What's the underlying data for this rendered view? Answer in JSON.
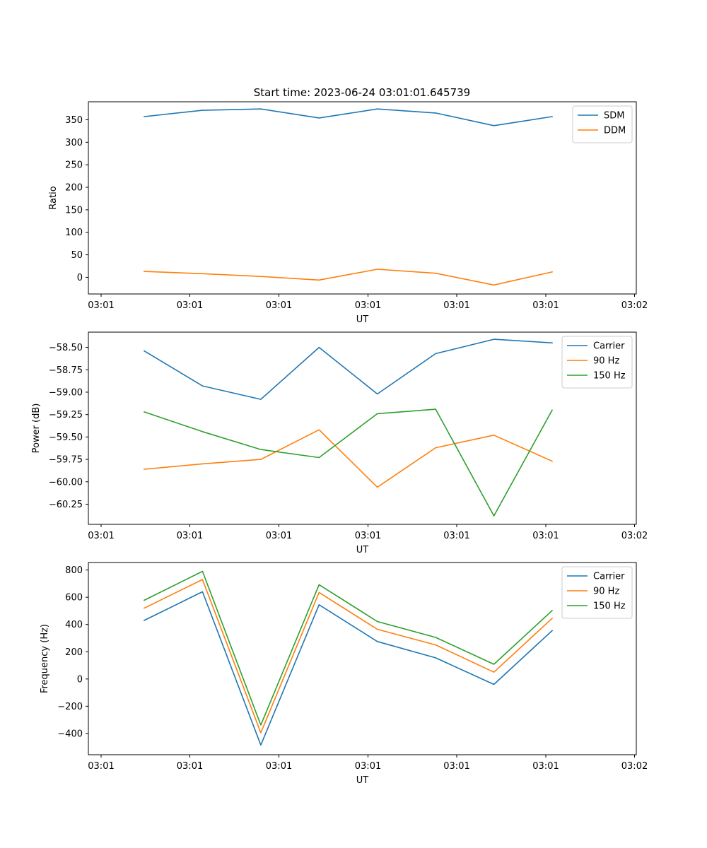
{
  "figure": {
    "title": "Start time: 2023-06-24 03:01:01.645739"
  },
  "colors": {
    "blue": "#1f77b4",
    "orange": "#ff7f0e",
    "green": "#2ca02c"
  },
  "chart_data": [
    {
      "type": "line",
      "title": "Start time: 2023-06-24 03:01:01.645739",
      "xlabel": "UT",
      "ylabel": "Ratio",
      "x_ticks": [
        "03:01",
        "03:01",
        "03:01",
        "03:01",
        "03:01",
        "03:01",
        "03:02"
      ],
      "y_ticks": [
        0,
        50,
        100,
        150,
        200,
        250,
        300,
        350
      ],
      "ylim": [
        -37,
        390
      ],
      "point_count": 8,
      "legend": "top-right",
      "grid": false,
      "series": [
        {
          "name": "SDM",
          "color": "#1f77b4",
          "values": [
            357,
            371,
            374,
            354,
            374,
            365,
            337,
            357
          ]
        },
        {
          "name": "DDM",
          "color": "#ff7f0e",
          "values": [
            13,
            8,
            2,
            -6,
            18,
            9,
            -17,
            12
          ]
        }
      ]
    },
    {
      "type": "line",
      "title": "",
      "xlabel": "UT",
      "ylabel": "Power (dB)",
      "x_ticks": [
        "03:01",
        "03:01",
        "03:01",
        "03:01",
        "03:01",
        "03:01",
        "03:02"
      ],
      "y_ticks": [
        -60.25,
        -60.0,
        -59.75,
        -59.5,
        -59.25,
        -59.0,
        -58.75,
        -58.5
      ],
      "y_tick_labels": [
        "−60.25",
        "−60.00",
        "−59.75",
        "−59.50",
        "−59.25",
        "−59.00",
        "−58.75",
        "−58.50"
      ],
      "ylim": [
        -60.475,
        -58.33
      ],
      "point_count": 8,
      "legend": "top-right",
      "grid": false,
      "series": [
        {
          "name": "Carrier",
          "color": "#1f77b4",
          "values": [
            -58.54,
            -58.93,
            -59.08,
            -58.5,
            -59.02,
            -58.57,
            -58.41,
            -58.45
          ]
        },
        {
          "name": "90 Hz",
          "color": "#ff7f0e",
          "values": [
            -59.86,
            -59.8,
            -59.75,
            -59.42,
            -60.06,
            -59.62,
            -59.48,
            -59.77
          ]
        },
        {
          "name": "150 Hz",
          "color": "#2ca02c",
          "values": [
            -59.22,
            -59.44,
            -59.64,
            -59.73,
            -59.24,
            -59.19,
            -60.38,
            -59.2
          ]
        }
      ]
    },
    {
      "type": "line",
      "title": "",
      "xlabel": "UT",
      "ylabel": "Frequency (Hz)",
      "x_ticks": [
        "03:01",
        "03:01",
        "03:01",
        "03:01",
        "03:01",
        "03:01",
        "03:02"
      ],
      "y_ticks": [
        -400,
        -200,
        0,
        200,
        400,
        600,
        800
      ],
      "y_tick_labels": [
        "−400",
        "−200",
        "0",
        "200",
        "400",
        "600",
        "800"
      ],
      "ylim": [
        -556,
        855
      ],
      "point_count": 8,
      "legend": "top-right",
      "grid": false,
      "series": [
        {
          "name": "Carrier",
          "color": "#1f77b4",
          "values": [
            430,
            640,
            -485,
            545,
            275,
            155,
            -40,
            355
          ]
        },
        {
          "name": "90 Hz",
          "color": "#ff7f0e",
          "values": [
            520,
            730,
            -395,
            635,
            365,
            250,
            50,
            445
          ]
        },
        {
          "name": "150 Hz",
          "color": "#2ca02c",
          "values": [
            578,
            790,
            -338,
            692,
            422,
            305,
            108,
            502
          ]
        }
      ]
    }
  ]
}
